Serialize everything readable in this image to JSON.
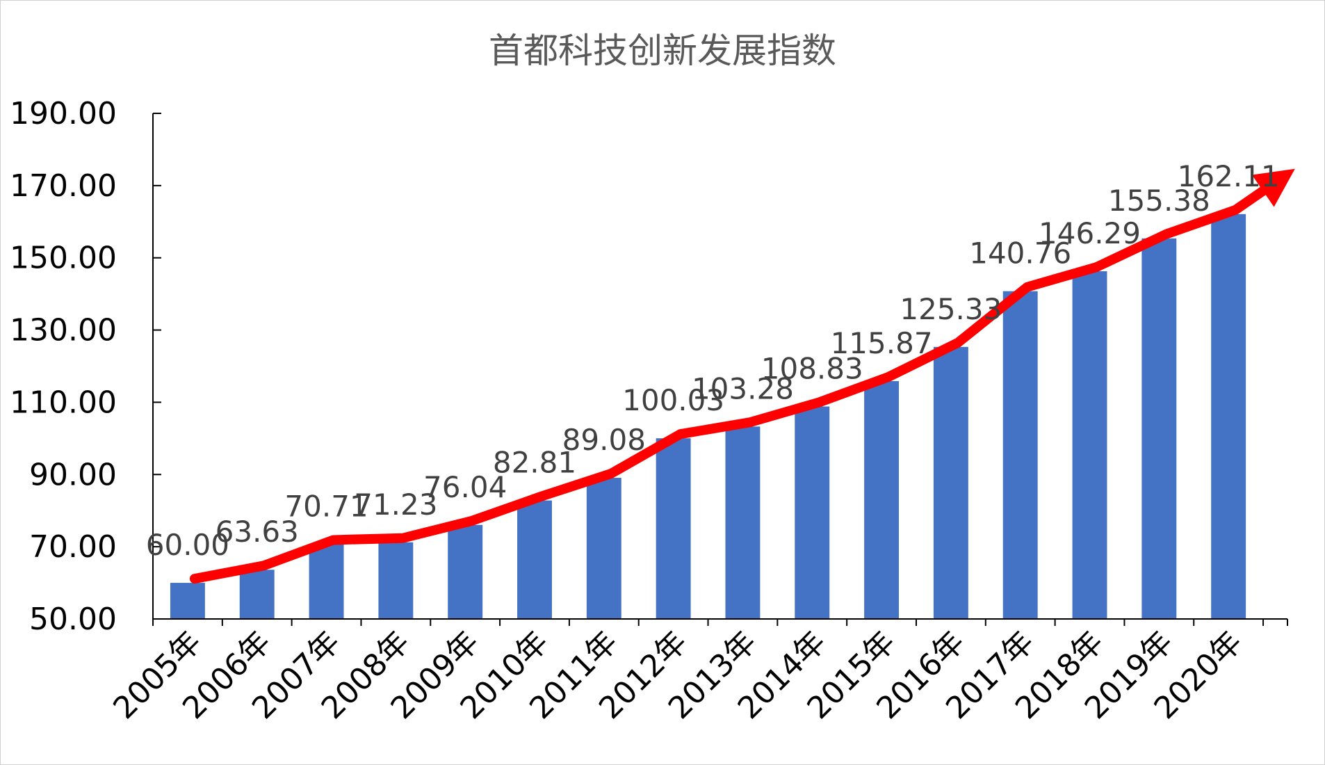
{
  "colors": {
    "bar": "#4472C4",
    "trend": "#FF0000",
    "axis": "#000000",
    "title": "#595959",
    "label": "#404040"
  },
  "chart_data": {
    "type": "bar",
    "title": "首都科技创新发展指数",
    "xlabel": "",
    "ylabel": "",
    "categories": [
      "2005年",
      "2006年",
      "2007年",
      "2008年",
      "2009年",
      "2010年",
      "2011年",
      "2012年",
      "2013年",
      "2014年",
      "2015年",
      "2016年",
      "2017年",
      "2018年",
      "2019年",
      "2020年"
    ],
    "values": [
      60.0,
      63.63,
      70.71,
      71.23,
      76.04,
      82.81,
      89.08,
      100.03,
      103.28,
      108.83,
      115.87,
      125.33,
      140.76,
      146.29,
      155.38,
      162.11
    ],
    "value_labels": [
      "60.00",
      "63.63",
      "70.71",
      "71.23",
      "76.04",
      "82.81",
      "89.08",
      "100.03",
      "103.28",
      "108.83",
      "115.87",
      "125.33",
      "140.76",
      "146.29",
      "155.38",
      "162.11"
    ],
    "ylim": [
      50,
      190
    ],
    "yticks": [
      50,
      70,
      90,
      110,
      130,
      150,
      170,
      190
    ],
    "ytick_labels": [
      "50.00",
      "70.00",
      "90.00",
      "110.00",
      "130.00",
      "150.00",
      "170.00",
      "190.00"
    ],
    "grid": false,
    "legend": "none",
    "overlay": "upward red trend arrow following bar tops"
  }
}
